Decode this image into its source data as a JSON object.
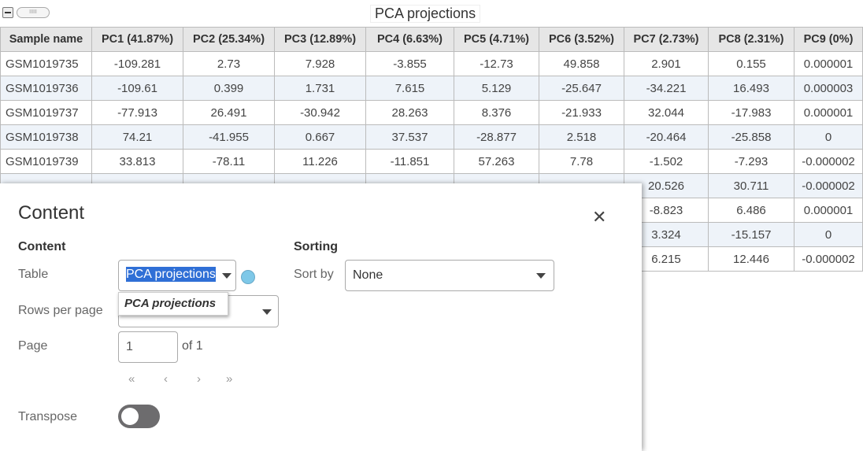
{
  "header": {
    "title": "PCA projections",
    "handle_label": "IIIII"
  },
  "table": {
    "columns": [
      "Sample name",
      "PC1 (41.87%)",
      "PC2 (25.34%)",
      "PC3 (12.89%)",
      "PC4 (6.63%)",
      "PC5 (4.71%)",
      "PC6 (3.52%)",
      "PC7 (2.73%)",
      "PC8 (2.31%)",
      "PC9 (0%)"
    ],
    "rows": [
      [
        "GSM1019735",
        "-109.281",
        "2.73",
        "7.928",
        "-3.855",
        "-12.73",
        "49.858",
        "2.901",
        "0.155",
        "0.000001"
      ],
      [
        "GSM1019736",
        "-109.61",
        "0.399",
        "1.731",
        "7.615",
        "5.129",
        "-25.647",
        "-34.221",
        "16.493",
        "0.000003"
      ],
      [
        "GSM1019737",
        "-77.913",
        "26.491",
        "-30.942",
        "28.263",
        "8.376",
        "-21.933",
        "32.044",
        "-17.983",
        "0.000001"
      ],
      [
        "GSM1019738",
        "74.21",
        "-41.955",
        "0.667",
        "37.537",
        "-28.877",
        "2.518",
        "-20.464",
        "-25.858",
        "0"
      ],
      [
        "GSM1019739",
        "33.813",
        "-78.11",
        "11.226",
        "-11.851",
        "57.263",
        "7.78",
        "-1.502",
        "-7.293",
        "-0.000002"
      ],
      [
        "",
        "",
        "",
        "",
        "",
        "",
        "",
        "20.526",
        "30.711",
        "-0.000002"
      ],
      [
        "",
        "",
        "",
        "",
        "",
        "",
        "",
        "-8.823",
        "6.486",
        "0.000001"
      ],
      [
        "",
        "",
        "",
        "",
        "",
        "",
        "",
        "3.324",
        "-15.157",
        "0"
      ],
      [
        "",
        "",
        "",
        "",
        "",
        "",
        "",
        "6.215",
        "12.446",
        "-0.000002"
      ]
    ]
  },
  "panel": {
    "title": "Content",
    "close_icon": "close-icon",
    "content_heading": "Content",
    "table_label": "Table",
    "table_value": "PCA projections",
    "dropdown_option": "PCA projections",
    "rows_label": "Rows per page",
    "page_label": "Page",
    "page_value": "1",
    "page_of": "of 1",
    "nav": {
      "first": "«",
      "prev": "‹",
      "next": "›",
      "last": "»"
    },
    "transpose_label": "Transpose",
    "transpose_on": false,
    "sorting_heading": "Sorting",
    "sort_label": "Sort by",
    "sort_value": "None",
    "status_dot_color": "#7ec8e8",
    "highlight_color": "#2f6fd6"
  }
}
